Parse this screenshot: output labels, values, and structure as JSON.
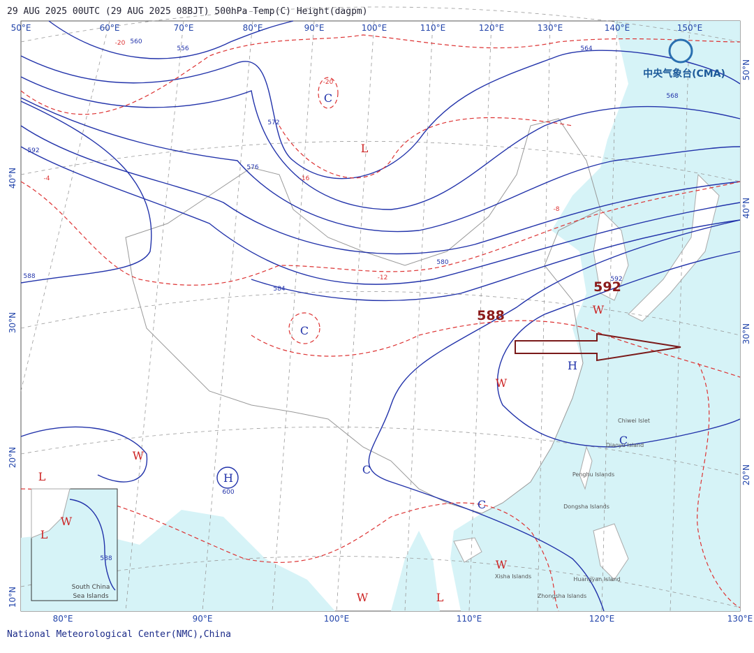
{
  "header": {
    "title": "29 AUG 2025 00UTC  (29 AUG 2025 08BJT) 500hPa Temp(C) Height(dagpm)"
  },
  "top_longitudes": [
    "50°E",
    "60°E",
    "70°E",
    "80°E",
    "90°E",
    "100°E",
    "110°E",
    "120°E",
    "130°E",
    "140°E",
    "150°E"
  ],
  "bottom_longitudes": [
    "80°E",
    "90°E",
    "100°E",
    "110°E",
    "120°E",
    "130°E"
  ],
  "left_latitudes": [
    "40°N",
    "30°N",
    "20°N",
    "10°N"
  ],
  "right_latitudes": [
    "50°N",
    "40°N",
    "30°N",
    "20°N"
  ],
  "height_labels": [
    "560",
    "556",
    "572",
    "576",
    "584",
    "580",
    "564",
    "568",
    "588",
    "592",
    "600",
    "588",
    "592"
  ],
  "temperature_labels": [
    "-20",
    "-20",
    "-16",
    "-12",
    "-8",
    "-4"
  ],
  "highlights": [
    "588",
    "592"
  ],
  "systems": [
    {
      "label": "C",
      "color": "#2233aa"
    },
    {
      "label": "L",
      "color": "#cc2222"
    },
    {
      "label": "C",
      "color": "#2233aa"
    },
    {
      "label": "H",
      "color": "#2233aa"
    },
    {
      "label": "W",
      "color": "#cc2222"
    },
    {
      "label": "W",
      "color": "#cc2222"
    },
    {
      "label": "L",
      "color": "#cc2222"
    },
    {
      "label": "H",
      "color": "#2233aa"
    },
    {
      "label": "C",
      "color": "#2233aa"
    },
    {
      "label": "C",
      "color": "#2233aa"
    },
    {
      "label": "W",
      "color": "#cc2222"
    },
    {
      "label": "C",
      "color": "#2233aa"
    },
    {
      "label": "W",
      "color": "#cc2222"
    },
    {
      "label": "W",
      "color": "#cc2222"
    },
    {
      "label": "L",
      "color": "#cc2222"
    },
    {
      "label": "W",
      "color": "#cc2222"
    },
    {
      "label": "L",
      "color": "#cc2222"
    }
  ],
  "islands": [
    "Chiwei Islet",
    "Diaoyu Island",
    "Penghu Islands",
    "Dongsha Islands",
    "Huangyan Island",
    "Xisha Islands",
    "Zhongsha Islands"
  ],
  "inset": {
    "line1": "South China",
    "line2": "Sea Islands"
  },
  "logo": "中央气象台(CMA)",
  "footer": "National Meteorological Center(NMC),China"
}
